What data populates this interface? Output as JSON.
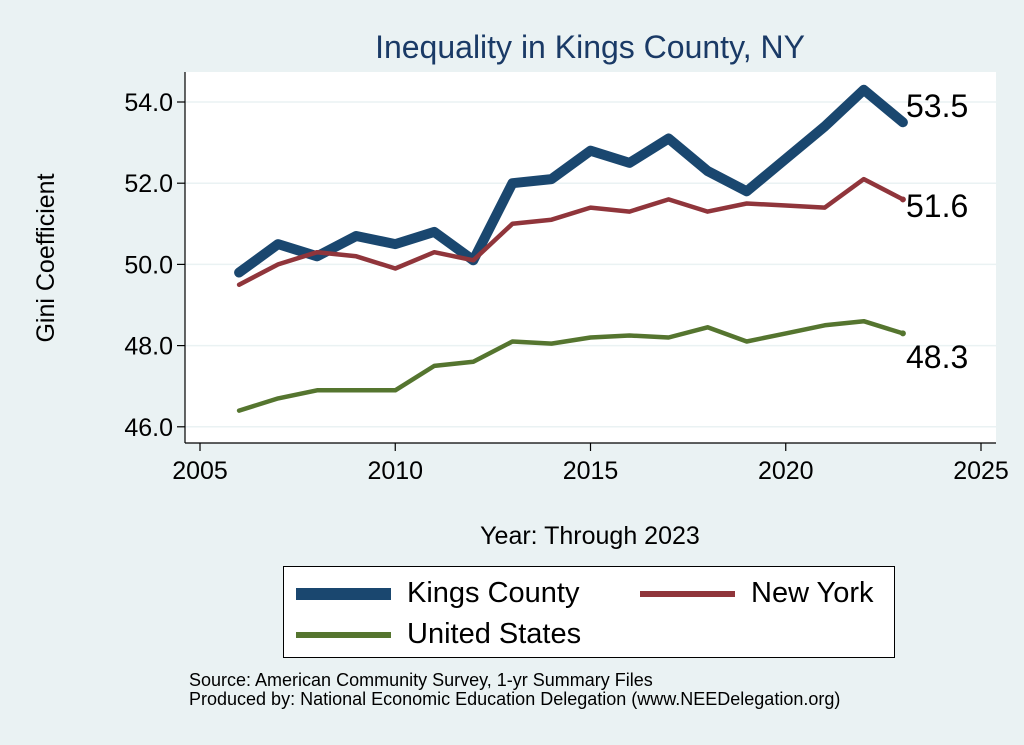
{
  "chart_data": {
    "type": "line",
    "title": "Inequality in Kings County, NY",
    "xlabel": "Year: Through 2023",
    "ylabel": "Gini Coefficient",
    "xlim": [
      2005,
      2025
    ],
    "ylim": [
      45.8,
      54.8
    ],
    "xticks": [
      2005,
      2010,
      2015,
      2020,
      2025
    ],
    "yticks": [
      46.0,
      48.0,
      50.0,
      52.0,
      54.0
    ],
    "ytick_labels": [
      "46.0",
      "48.0",
      "50.0",
      "52.0",
      "54.0"
    ],
    "grid": true,
    "legend_position": "bottom",
    "series": [
      {
        "name": "Kings County",
        "color": "#1a476f",
        "x": [
          2006,
          2007,
          2008,
          2009,
          2010,
          2011,
          2012,
          2013,
          2014,
          2015,
          2016,
          2017,
          2018,
          2019,
          2020,
          2021,
          2022,
          2023
        ],
        "values": [
          49.8,
          50.5,
          50.2,
          50.7,
          50.5,
          50.8,
          50.1,
          52.0,
          52.1,
          52.8,
          52.5,
          53.1,
          52.3,
          51.8,
          52.6,
          53.4,
          54.3,
          53.5
        ],
        "end_label": "53.5"
      },
      {
        "name": "New York",
        "color": "#90353b",
        "x": [
          2006,
          2007,
          2008,
          2009,
          2010,
          2011,
          2012,
          2013,
          2014,
          2015,
          2016,
          2017,
          2018,
          2019,
          2020,
          2021,
          2022,
          2023
        ],
        "values": [
          49.5,
          50.0,
          50.3,
          50.2,
          49.9,
          50.3,
          50.1,
          51.0,
          51.1,
          51.4,
          51.3,
          51.6,
          51.3,
          51.5,
          51.45,
          51.4,
          52.1,
          51.6
        ],
        "end_label": "51.6"
      },
      {
        "name": "United States",
        "color": "#55752f",
        "x": [
          2006,
          2007,
          2008,
          2009,
          2010,
          2011,
          2012,
          2013,
          2014,
          2015,
          2016,
          2017,
          2018,
          2019,
          2020,
          2021,
          2022,
          2023
        ],
        "values": [
          46.4,
          46.7,
          46.9,
          46.9,
          46.9,
          47.5,
          47.6,
          48.1,
          48.05,
          48.2,
          48.25,
          48.2,
          48.45,
          48.1,
          48.3,
          48.5,
          48.6,
          48.3
        ],
        "end_label": "48.3"
      }
    ]
  },
  "source_lines": [
    "Source: American Community Survey, 1-yr Summary Files",
    "Produced by: National Economic Education Delegation (www.NEEDelegation.org)"
  ]
}
